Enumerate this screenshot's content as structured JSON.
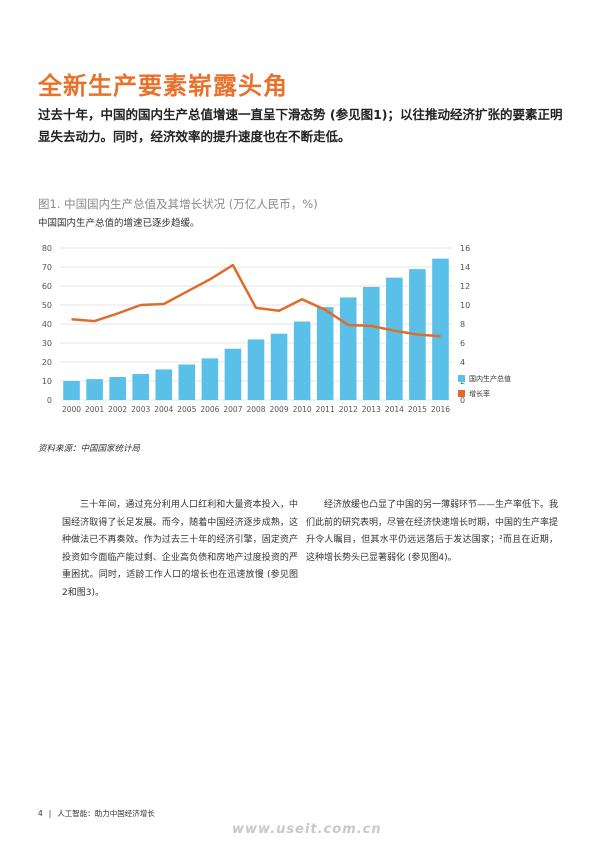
{
  "heading": "全新生产要素崭露头角",
  "lead": "过去十年，中国的国内生产总值增速一直呈下滑态势 (参见图1)；以往推动经济扩张的要素正明显失去动力。同时，经济效率的提升速度也在不断走低。",
  "figure": {
    "title": "图1. 中国国内生产总值及其增长状况 (万亿人民币，%)",
    "subtitle": "中国国内生产总值的增速已逐步趋缓。",
    "source": "资料来源：中国国家统计局"
  },
  "chart_data": {
    "type": "bar",
    "categories": [
      "2000",
      "2001",
      "2002",
      "2003",
      "2004",
      "2005",
      "2006",
      "2007",
      "2008",
      "2009",
      "2010",
      "2011",
      "2012",
      "2013",
      "2014",
      "2015",
      "2016"
    ],
    "series": [
      {
        "name": "国内生产总值",
        "type": "bar",
        "axis": "left",
        "values": [
          10.0,
          11.0,
          12.1,
          13.7,
          16.1,
          18.7,
          21.9,
          27.0,
          31.9,
          34.9,
          41.3,
          48.9,
          54.0,
          59.5,
          64.4,
          68.9,
          74.4
        ]
      },
      {
        "name": "增长率",
        "type": "line",
        "axis": "right",
        "values": [
          8.5,
          8.3,
          9.1,
          10.0,
          10.1,
          11.4,
          12.7,
          14.2,
          9.7,
          9.4,
          10.6,
          9.5,
          7.9,
          7.8,
          7.3,
          6.9,
          6.7
        ]
      }
    ],
    "yleft": {
      "min": 0,
      "max": 80,
      "ticks": [
        0,
        10,
        20,
        30,
        40,
        50,
        60,
        70,
        80
      ]
    },
    "yright": {
      "min": 0,
      "max": 16,
      "ticks": [
        0,
        2,
        4,
        6,
        8,
        10,
        12,
        14,
        16
      ]
    },
    "grid": true,
    "legend_position": "bottom-right",
    "colors": {
      "bar": "#5bc0e8",
      "line": "#e06c2b"
    }
  },
  "columns": {
    "left": "三十年间，通过充分利用人口红利和大量资本投入，中国经济取得了长足发展。而今，随着中国经济逐步成熟，这种做法已不再奏效。作为过去三十年的经济引擎，固定资产投资如今面临产能过剩、企业高负债和房地产过度投资的严重困扰。同时，适龄工作人口的增长也在迅速放慢 (参见图2和图3)。",
    "right": "经济放缓也凸显了中国的另一薄弱环节——生产率低下。我们此前的研究表明，尽管在经济快速增长时期，中国的生产率提升令人瞩目，但其水平仍远远落后于发达国家；²而且在近期，这种增长势头已显著弱化 (参见图4)。"
  },
  "footer": {
    "page_number": "4",
    "separator": "|",
    "running_title": "人工智能：助力中国经济增长"
  },
  "watermark": "www.useit.com.cn"
}
